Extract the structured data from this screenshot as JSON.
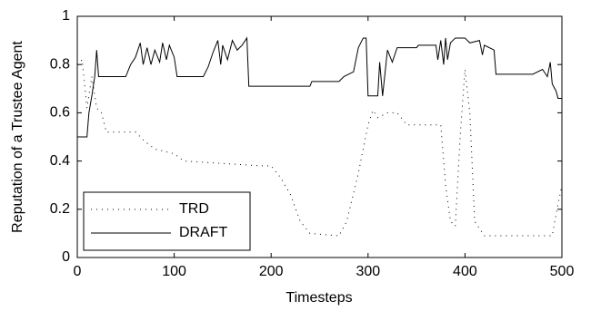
{
  "chart_data": {
    "type": "line",
    "xlabel": "Timesteps",
    "ylabel": "Reputation of a Trustee Agent",
    "xlim": [
      0,
      500
    ],
    "ylim": [
      0,
      1
    ],
    "xticks": [
      0,
      100,
      200,
      300,
      400,
      500
    ],
    "yticks": [
      0,
      0.2,
      0.4,
      0.6,
      0.8,
      1
    ],
    "legend": "lower left",
    "grid": false,
    "series": [
      {
        "name": "TRD",
        "color": "#000000",
        "style": "dotted",
        "x": [
          0,
          5,
          10,
          15,
          20,
          25,
          30,
          60,
          70,
          80,
          100,
          110,
          190,
          200,
          210,
          220,
          230,
          240,
          270,
          278,
          290,
          300,
          305,
          310,
          320,
          330,
          340,
          375,
          380,
          385,
          390,
          395,
          400,
          405,
          410,
          420,
          490,
          495,
          500
        ],
        "values": [
          0.8,
          0.82,
          0.62,
          0.75,
          0.62,
          0.6,
          0.52,
          0.52,
          0.48,
          0.45,
          0.43,
          0.4,
          0.38,
          0.38,
          0.33,
          0.26,
          0.15,
          0.1,
          0.09,
          0.15,
          0.35,
          0.55,
          0.61,
          0.58,
          0.6,
          0.6,
          0.55,
          0.55,
          0.3,
          0.15,
          0.13,
          0.5,
          0.78,
          0.6,
          0.15,
          0.09,
          0.09,
          0.2,
          0.3
        ]
      },
      {
        "name": "DRAFT",
        "color": "#000000",
        "style": "solid",
        "x": [
          0,
          10,
          12,
          15,
          18,
          20,
          22,
          50,
          55,
          60,
          65,
          68,
          72,
          76,
          80,
          85,
          88,
          92,
          95,
          100,
          103,
          130,
          135,
          140,
          145,
          148,
          150,
          155,
          160,
          165,
          170,
          175,
          177,
          240,
          242,
          270,
          275,
          285,
          290,
          295,
          298,
          300,
          310,
          312,
          315,
          320,
          325,
          330,
          350,
          352,
          370,
          372,
          375,
          378,
          380,
          382,
          385,
          390,
          400,
          405,
          415,
          418,
          420,
          430,
          432,
          470,
          480,
          485,
          488,
          490,
          494,
          496,
          500
        ],
        "values": [
          0.5,
          0.5,
          0.6,
          0.67,
          0.75,
          0.86,
          0.75,
          0.75,
          0.8,
          0.83,
          0.89,
          0.8,
          0.87,
          0.8,
          0.86,
          0.81,
          0.89,
          0.82,
          0.88,
          0.83,
          0.75,
          0.75,
          0.79,
          0.85,
          0.9,
          0.8,
          0.88,
          0.82,
          0.9,
          0.86,
          0.88,
          0.91,
          0.71,
          0.71,
          0.73,
          0.73,
          0.75,
          0.77,
          0.87,
          0.91,
          0.91,
          0.67,
          0.67,
          0.81,
          0.67,
          0.86,
          0.81,
          0.87,
          0.87,
          0.88,
          0.88,
          0.82,
          0.9,
          0.8,
          0.91,
          0.82,
          0.89,
          0.91,
          0.91,
          0.89,
          0.9,
          0.84,
          0.88,
          0.86,
          0.76,
          0.76,
          0.78,
          0.75,
          0.81,
          0.72,
          0.69,
          0.66,
          0.66
        ]
      }
    ]
  }
}
